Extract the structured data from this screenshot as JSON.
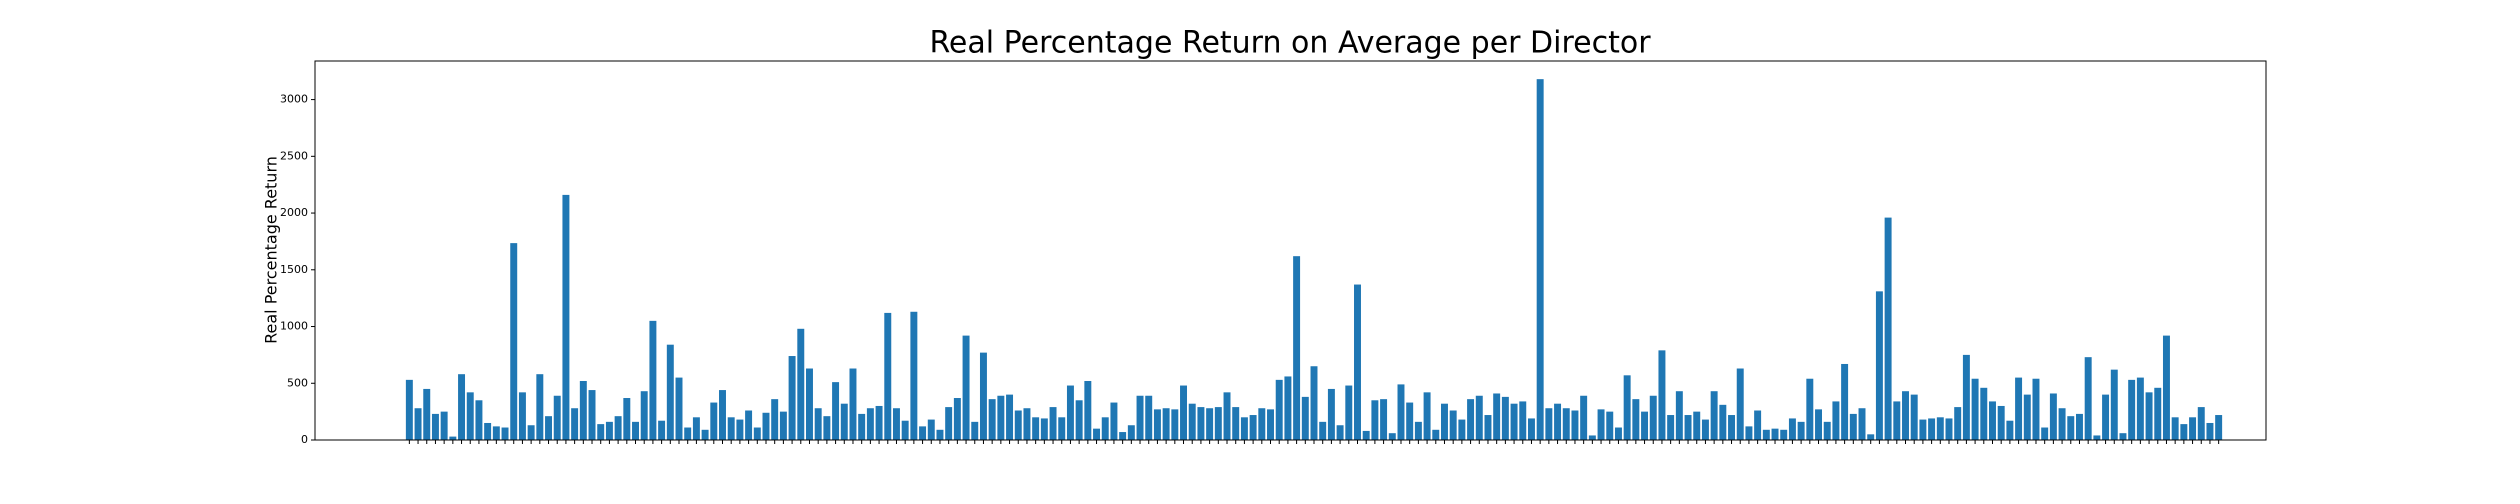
{
  "chart_data": {
    "type": "bar",
    "title": "Real Percentage Return on Average per Director",
    "y_label": "Real Percentage Return",
    "color": "#1f77b4",
    "categories": [
      null,
      null,
      null,
      null,
      null,
      null,
      null,
      null,
      null,
      null,
      null,
      null,
      null,
      null,
      null,
      null,
      null,
      null,
      null,
      null,
      null,
      null,
      null,
      null,
      null,
      null,
      null,
      null,
      null,
      null,
      null,
      null,
      null,
      null,
      null,
      null,
      null,
      null,
      null,
      null,
      null,
      null,
      null,
      null,
      null,
      null,
      null,
      null,
      null,
      null,
      null,
      null,
      null,
      null,
      null,
      null,
      null,
      null,
      null,
      null,
      null,
      null,
      null,
      null,
      null,
      null,
      null,
      null,
      null,
      null,
      null,
      null,
      null,
      null,
      null,
      null,
      null,
      null,
      null,
      null,
      null,
      null,
      null,
      null,
      null,
      null,
      null,
      null,
      null,
      null,
      null,
      null,
      null,
      null,
      null,
      null,
      null,
      null,
      null,
      null,
      null,
      null,
      null,
      null,
      null,
      null,
      null,
      null,
      null,
      null,
      null,
      null,
      null,
      null,
      null,
      null,
      null,
      null,
      null,
      null,
      null,
      null,
      null,
      null,
      null,
      null,
      null,
      null,
      null,
      null,
      null,
      null,
      null,
      null,
      null,
      null,
      null,
      null,
      null,
      null,
      null,
      null,
      null,
      null,
      null,
      null,
      null,
      null,
      null,
      null,
      null,
      null,
      null,
      null,
      null,
      null,
      null,
      null,
      null,
      null,
      null,
      null,
      null,
      null,
      null,
      null,
      null,
      null,
      null,
      null,
      null,
      null,
      null,
      null,
      null,
      null,
      null,
      null,
      null,
      null,
      null,
      null,
      null,
      null,
      null,
      null,
      null,
      null,
      null,
      null,
      null,
      null,
      null,
      null,
      null,
      null,
      null,
      null,
      null,
      null,
      null,
      null,
      null,
      null,
      null,
      null,
      null,
      null,
      null
    ],
    "values": [
      530,
      280,
      450,
      230,
      250,
      30,
      580,
      420,
      350,
      150,
      120,
      110,
      1735,
      420,
      130,
      580,
      210,
      390,
      2160,
      280,
      520,
      440,
      140,
      160,
      210,
      370,
      160,
      430,
      1050,
      170,
      840,
      550,
      110,
      200,
      90,
      330,
      440,
      200,
      180,
      260,
      110,
      240,
      360,
      250,
      740,
      980,
      630,
      280,
      210,
      510,
      320,
      630,
      230,
      280,
      300,
      1120,
      280,
      170,
      1130,
      120,
      180,
      90,
      290,
      370,
      920,
      160,
      770,
      360,
      390,
      400,
      260,
      280,
      200,
      190,
      290,
      200,
      480,
      350,
      520,
      100,
      200,
      330,
      70,
      130,
      390,
      390,
      270,
      280,
      270,
      480,
      320,
      290,
      280,
      290,
      420,
      290,
      200,
      220,
      280,
      270,
      530,
      560,
      1620,
      380,
      650,
      160,
      450,
      130,
      480,
      1370,
      80,
      350,
      360,
      60,
      490,
      330,
      160,
      420,
      90,
      320,
      260,
      180,
      360,
      390,
      220,
      410,
      380,
      320,
      340,
      190,
      3180,
      280,
      320,
      280,
      260,
      390,
      40,
      270,
      250,
      110,
      570,
      360,
      250,
      390,
      790,
      220,
      430,
      220,
      250,
      180,
      430,
      310,
      220,
      630,
      120,
      260,
      90,
      100,
      90,
      190,
      160,
      540,
      270,
      160,
      340,
      670,
      230,
      280,
      50,
      1310,
      1960,
      340,
      430,
      400,
      180,
      190,
      200,
      190,
      290,
      750,
      540,
      460,
      340,
      300,
      170,
      550,
      400,
      540,
      110,
      410,
      280,
      210,
      230,
      730,
      40,
      400,
      620,
      60,
      530,
      550,
      420,
      460,
      920,
      200,
      140,
      200,
      290,
      150,
      220
    ],
    "ylim": [
      0,
      3340
    ],
    "yticks": [
      0,
      500,
      1000,
      1500,
      2000,
      2500,
      3000
    ]
  }
}
